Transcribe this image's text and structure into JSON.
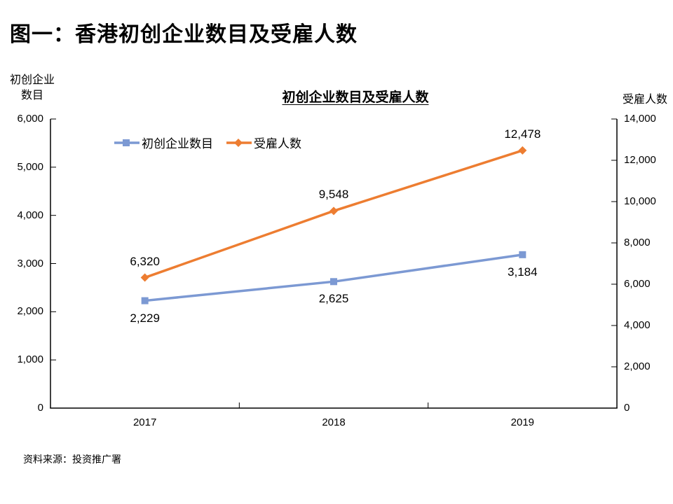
{
  "figure": {
    "title": "图一：香港初创企业数目及受雇人数",
    "source": "资料来源：投资推广署"
  },
  "chart": {
    "title": "初创企业数目及受雇人数",
    "left_axis": {
      "unit_label_line1": "初创企业",
      "unit_label_line2": "数目",
      "tick_labels": [
        "0",
        "1,000",
        "2,000",
        "3,000",
        "4,000",
        "5,000",
        "6,000"
      ]
    },
    "right_axis": {
      "unit_label": "受雇人数",
      "tick_labels": [
        "0",
        "2,000",
        "4,000",
        "6,000",
        "8,000",
        "10,000",
        "12,000",
        "14,000"
      ]
    }
  },
  "chart_data": {
    "type": "line",
    "title": "初创企业数目及受雇人数",
    "categories": [
      "2017",
      "2018",
      "2019"
    ],
    "series": [
      {
        "name": "初创企业数目",
        "axis": "left",
        "color": "#7C99D3",
        "marker": "square",
        "values": [
          2229,
          2625,
          3184
        ],
        "labels": [
          "2,229",
          "2,625",
          "3,184"
        ],
        "label_position": "below"
      },
      {
        "name": "受雇人数",
        "axis": "right",
        "color": "#ED7D31",
        "marker": "diamond",
        "values": [
          6320,
          9548,
          12478
        ],
        "labels": [
          "6,320",
          "9,548",
          "12,478"
        ],
        "label_position": "above"
      }
    ],
    "left_ylim": [
      0,
      6000
    ],
    "right_ylim": [
      0,
      14000
    ],
    "grid": false,
    "legend_position": "top",
    "axis_color": "#000000"
  }
}
